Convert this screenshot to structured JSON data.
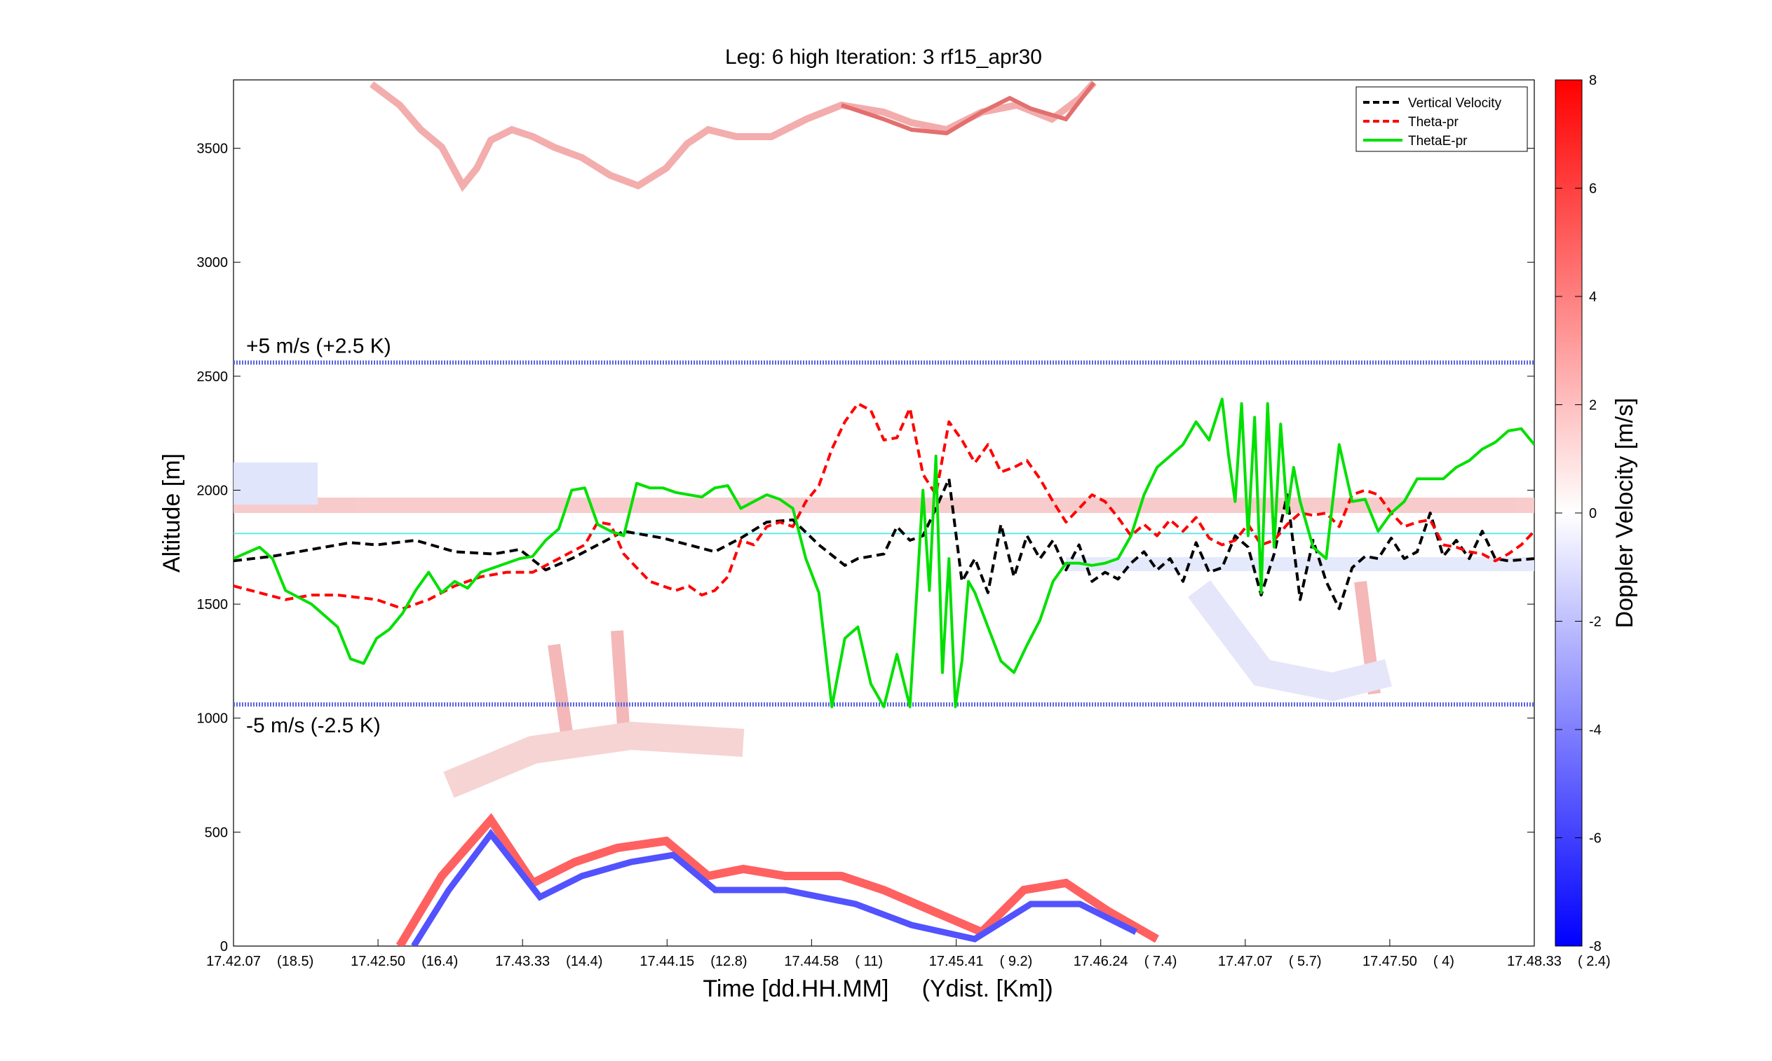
{
  "chart_data": {
    "type": "line",
    "title": "Leg: 6 high Iteration: 3  rf15_apr30",
    "xlabel": "Time [dd.HH.MM]     (Ydist. [Km])",
    "ylabel": "Altitude [m]",
    "xlim": [
      0,
      1
    ],
    "ylim": [
      0,
      3800
    ],
    "x_ticks": [
      {
        "label": "17.42.07",
        "dist": "(18.5)",
        "x": 0.0
      },
      {
        "label": "17.42.50",
        "dist": "(16.4)",
        "x": 0.1111
      },
      {
        "label": "17.43.33",
        "dist": "(14.4)",
        "x": 0.2222
      },
      {
        "label": "17.44.15",
        "dist": "(12.8)",
        "x": 0.3333
      },
      {
        "label": "17.44.58",
        "dist": "( 11)",
        "x": 0.4444
      },
      {
        "label": "17.45.41",
        "dist": "( 9.2)",
        "x": 0.5556
      },
      {
        "label": "17.46.24",
        "dist": "( 7.4)",
        "x": 0.6667
      },
      {
        "label": "17.47.07",
        "dist": "( 5.7)",
        "x": 0.7778
      },
      {
        "label": "17.47.50",
        "dist": "( 4)",
        "x": 0.8889
      },
      {
        "label": "17.48.33",
        "dist": "( 2.4)",
        "x": 1.0
      }
    ],
    "y_ticks": [
      0,
      500,
      1000,
      1500,
      2000,
      2500,
      3000,
      3500
    ],
    "reference_lines": [
      {
        "y": 2560,
        "label": "+5 m/s (+2.5 K)",
        "color": "#5a64e0"
      },
      {
        "y": 1060,
        "label": "-5 m/s (-2.5 K)",
        "color": "#5a64e0"
      },
      {
        "y": 1810,
        "label": "",
        "color": "#66e8e8"
      }
    ],
    "legend_position": "top-right",
    "series": [
      {
        "name": "Vertical Velocity",
        "color": "#000000",
        "style": "dashed",
        "x": [
          0.0,
          0.03,
          0.06,
          0.09,
          0.11,
          0.14,
          0.17,
          0.2,
          0.22,
          0.24,
          0.26,
          0.28,
          0.3,
          0.33,
          0.35,
          0.37,
          0.38,
          0.39,
          0.41,
          0.43,
          0.45,
          0.47,
          0.48,
          0.49,
          0.5,
          0.51,
          0.52,
          0.53,
          0.54,
          0.55,
          0.56,
          0.57,
          0.58,
          0.59,
          0.6,
          0.61,
          0.62,
          0.63,
          0.64,
          0.65,
          0.66,
          0.67,
          0.68,
          0.69,
          0.7,
          0.71,
          0.72,
          0.73,
          0.74,
          0.75,
          0.76,
          0.77,
          0.78,
          0.79,
          0.8,
          0.81,
          0.82,
          0.83,
          0.84,
          0.85,
          0.86,
          0.87,
          0.88,
          0.89,
          0.9,
          0.91,
          0.92,
          0.93,
          0.94,
          0.95,
          0.96,
          0.97,
          0.98,
          1.0
        ],
        "y": [
          1690,
          1710,
          1740,
          1770,
          1760,
          1780,
          1730,
          1720,
          1740,
          1650,
          1700,
          1760,
          1820,
          1790,
          1760,
          1730,
          1760,
          1790,
          1860,
          1870,
          1760,
          1670,
          1700,
          1710,
          1720,
          1840,
          1780,
          1800,
          1920,
          2050,
          1600,
          1700,
          1550,
          1850,
          1620,
          1800,
          1700,
          1780,
          1650,
          1760,
          1600,
          1640,
          1610,
          1680,
          1730,
          1650,
          1700,
          1600,
          1770,
          1640,
          1660,
          1800,
          1750,
          1540,
          1720,
          1980,
          1520,
          1780,
          1600,
          1480,
          1660,
          1710,
          1700,
          1790,
          1700,
          1730,
          1900,
          1710,
          1780,
          1700,
          1820,
          1700,
          1690,
          1700
        ]
      },
      {
        "name": "Theta-pr",
        "color": "#ff0000",
        "style": "dashed",
        "x": [
          0.0,
          0.02,
          0.04,
          0.06,
          0.08,
          0.11,
          0.13,
          0.15,
          0.17,
          0.19,
          0.21,
          0.23,
          0.25,
          0.27,
          0.28,
          0.29,
          0.3,
          0.31,
          0.32,
          0.34,
          0.35,
          0.36,
          0.37,
          0.38,
          0.39,
          0.4,
          0.41,
          0.42,
          0.43,
          0.44,
          0.45,
          0.46,
          0.47,
          0.48,
          0.49,
          0.5,
          0.51,
          0.52,
          0.53,
          0.54,
          0.55,
          0.56,
          0.57,
          0.58,
          0.59,
          0.6,
          0.61,
          0.62,
          0.63,
          0.64,
          0.65,
          0.66,
          0.67,
          0.68,
          0.69,
          0.7,
          0.71,
          0.72,
          0.73,
          0.74,
          0.75,
          0.76,
          0.77,
          0.78,
          0.79,
          0.8,
          0.81,
          0.82,
          0.83,
          0.84,
          0.85,
          0.86,
          0.87,
          0.88,
          0.89,
          0.9,
          0.91,
          0.92,
          0.93,
          0.94,
          0.95,
          0.96,
          0.97,
          0.98,
          0.99,
          1.0
        ],
        "y": [
          1580,
          1550,
          1520,
          1540,
          1540,
          1520,
          1480,
          1520,
          1580,
          1620,
          1640,
          1640,
          1700,
          1760,
          1860,
          1850,
          1720,
          1660,
          1600,
          1560,
          1580,
          1540,
          1560,
          1620,
          1780,
          1760,
          1840,
          1860,
          1840,
          1950,
          2020,
          2180,
          2300,
          2380,
          2350,
          2220,
          2230,
          2360,
          2070,
          1980,
          2300,
          2220,
          2120,
          2200,
          2080,
          2100,
          2130,
          2050,
          1950,
          1860,
          1920,
          1980,
          1950,
          1880,
          1800,
          1850,
          1800,
          1870,
          1820,
          1880,
          1790,
          1760,
          1780,
          1850,
          1760,
          1780,
          1850,
          1900,
          1890,
          1900,
          1840,
          1980,
          2000,
          1980,
          1900,
          1840,
          1860,
          1870,
          1760,
          1750,
          1730,
          1720,
          1690,
          1720,
          1760,
          1820
        ]
      },
      {
        "name": "ThetaE-pr",
        "color": "#00e000",
        "style": "solid",
        "x": [
          0.0,
          0.02,
          0.03,
          0.04,
          0.06,
          0.08,
          0.09,
          0.1,
          0.11,
          0.12,
          0.13,
          0.14,
          0.15,
          0.16,
          0.17,
          0.18,
          0.19,
          0.2,
          0.21,
          0.22,
          0.23,
          0.24,
          0.25,
          0.26,
          0.27,
          0.28,
          0.29,
          0.3,
          0.31,
          0.32,
          0.33,
          0.34,
          0.35,
          0.36,
          0.37,
          0.38,
          0.39,
          0.4,
          0.41,
          0.42,
          0.43,
          0.44,
          0.45,
          0.46,
          0.47,
          0.48,
          0.49,
          0.5,
          0.51,
          0.52,
          0.53,
          0.535,
          0.54,
          0.545,
          0.55,
          0.555,
          0.56,
          0.565,
          0.57,
          0.58,
          0.59,
          0.6,
          0.61,
          0.62,
          0.63,
          0.64,
          0.65,
          0.66,
          0.67,
          0.68,
          0.69,
          0.7,
          0.71,
          0.72,
          0.73,
          0.74,
          0.75,
          0.76,
          0.765,
          0.77,
          0.775,
          0.78,
          0.785,
          0.79,
          0.795,
          0.8,
          0.805,
          0.81,
          0.815,
          0.82,
          0.83,
          0.84,
          0.85,
          0.86,
          0.87,
          0.88,
          0.89,
          0.9,
          0.91,
          0.92,
          0.93,
          0.94,
          0.95,
          0.96,
          0.97,
          0.98,
          0.99,
          1.0
        ],
        "y": [
          1700,
          1750,
          1700,
          1560,
          1500,
          1400,
          1260,
          1240,
          1350,
          1390,
          1460,
          1560,
          1640,
          1550,
          1600,
          1570,
          1640,
          1660,
          1680,
          1700,
          1710,
          1780,
          1830,
          2000,
          2010,
          1850,
          1820,
          1800,
          2030,
          2010,
          2010,
          1990,
          1980,
          1970,
          2010,
          2020,
          1920,
          1950,
          1980,
          1960,
          1920,
          1700,
          1550,
          1050,
          1350,
          1400,
          1150,
          1050,
          1280,
          1050,
          2000,
          1560,
          2150,
          1200,
          1700,
          1050,
          1250,
          1600,
          1550,
          1400,
          1250,
          1200,
          1320,
          1430,
          1600,
          1680,
          1680,
          1670,
          1680,
          1700,
          1800,
          1980,
          2100,
          2150,
          2200,
          2300,
          2220,
          2400,
          2150,
          1950,
          2380,
          1800,
          2320,
          1550,
          2380,
          1750,
          2290,
          1900,
          2100,
          1950,
          1750,
          1700,
          2200,
          1950,
          1960,
          1820,
          1900,
          1950,
          2050,
          2050,
          2050,
          2100,
          2130,
          2180,
          2210,
          2260,
          2270,
          2200
        ]
      }
    ],
    "colorbar": {
      "label": "Doppler Velocity [m/s]",
      "range": [
        -8,
        8
      ],
      "ticks": [
        "8",
        "6",
        "4",
        "2",
        "0",
        "-2",
        "-4",
        "-6",
        "-8"
      ],
      "color_low": "#0000ff",
      "color_mid": "#ffffff",
      "color_high": "#ff0000"
    }
  }
}
